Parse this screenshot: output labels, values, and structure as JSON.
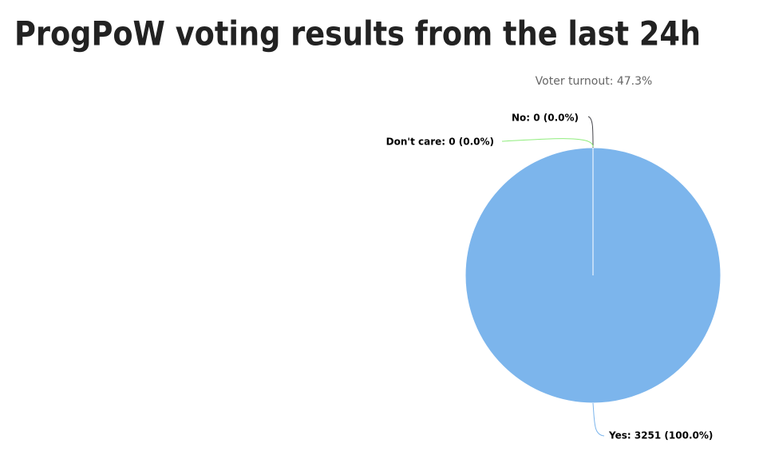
{
  "chart_data": {
    "type": "pie",
    "title": "ProgPoW voting results from the last 24h",
    "subtitle": "Voter turnout: 47.3%",
    "categories": [
      "Yes",
      "No",
      "Don't care"
    ],
    "values": [
      3251,
      0,
      0
    ],
    "value_labels": [
      "Yes: 3251 (100.0%)",
      "No: 0 (0.0%)",
      "Don't care: 0 (0.0%)"
    ],
    "colors": [
      "#7cb5ec",
      "#434348",
      "#90ed7d"
    ]
  }
}
